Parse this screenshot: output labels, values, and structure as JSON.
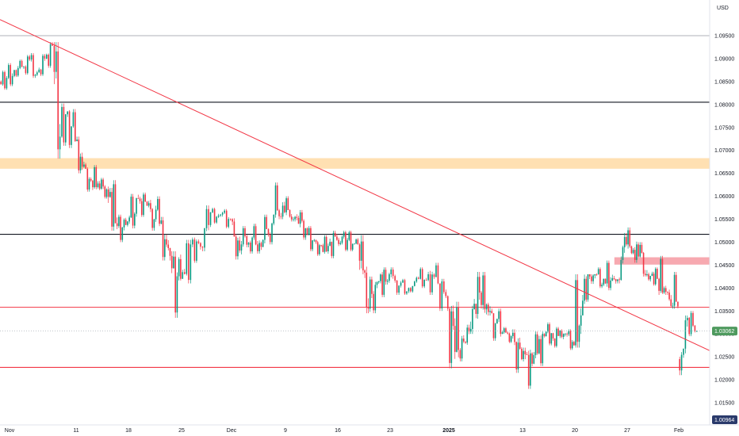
{
  "chart_data": {
    "type": "candlestick",
    "currency_label": "USD",
    "y_ticks": [
      "1.09500",
      "1.09000",
      "1.08500",
      "1.08000",
      "1.07500",
      "1.07000",
      "1.06500",
      "1.06000",
      "1.05500",
      "1.05000",
      "1.04500",
      "1.04000",
      "1.03500",
      "1.03000",
      "1.02500",
      "1.02000",
      "1.01500"
    ],
    "x_ticks": [
      "Nov",
      "11",
      "18",
      "25",
      "Dec",
      "9",
      "16",
      "23",
      "2025",
      "13",
      "20",
      "27",
      "Feb"
    ],
    "ylim": [
      1.00964,
      1.0995
    ],
    "current_price": "1.03062",
    "bottom_price": "1.00964",
    "colors": {
      "up": "#089981",
      "down": "#f23645",
      "line": "#131722",
      "red_line": "#f23645",
      "supply_zone": "#ffe0b2",
      "resistance_zone": "#f7a9b0",
      "current_price": "#4e9a5e",
      "bottom_price": "#2a3a6b"
    },
    "horizontal_lines": [
      {
        "price": 1.095,
        "color": "gray"
      },
      {
        "price": 1.0805,
        "color": "black"
      },
      {
        "price": 1.0517,
        "color": "black"
      },
      {
        "price": 1.0358,
        "color": "red"
      },
      {
        "price": 1.0227,
        "color": "red"
      }
    ],
    "zones": [
      {
        "from": 1.066,
        "to": 1.0683,
        "color": "supply_zone"
      },
      {
        "from": 1.0451,
        "to": 1.0467,
        "color": "resistance_zone"
      }
    ],
    "trendline": {
      "from": {
        "x": "Oct 28",
        "price": 1.0985
      },
      "to": {
        "x": "Feb 3",
        "price": 1.0295
      }
    },
    "candles": [
      {
        "date": "Oct 28",
        "o": 1.085,
        "h": 1.0874,
        "l": 1.0832,
        "c": 1.0858
      },
      {
        "date": "Oct 29",
        "o": 1.0858,
        "h": 1.089,
        "l": 1.084,
        "c": 1.0875
      },
      {
        "date": "Oct 30",
        "o": 1.0875,
        "h": 1.0898,
        "l": 1.086,
        "c": 1.0882
      },
      {
        "date": "Oct 31",
        "o": 1.0882,
        "h": 1.0908,
        "l": 1.0865,
        "c": 1.0898
      },
      {
        "date": "Nov 1",
        "o": 1.0898,
        "h": 1.0912,
        "l": 1.0858,
        "c": 1.087
      },
      {
        "date": "Nov 4",
        "o": 1.087,
        "h": 1.091,
        "l": 1.0862,
        "c": 1.09
      },
      {
        "date": "Nov 5",
        "o": 1.09,
        "h": 1.0936,
        "l": 1.088,
        "c": 1.0928
      },
      {
        "date": "Nov 6",
        "o": 1.0928,
        "h": 1.0936,
        "l": 1.0682,
        "c": 1.073
      },
      {
        "date": "Nov 7",
        "o": 1.073,
        "h": 1.0802,
        "l": 1.071,
        "c": 1.0785
      },
      {
        "date": "Nov 8",
        "o": 1.0785,
        "h": 1.079,
        "l": 1.0705,
        "c": 1.072
      },
      {
        "date": "Nov 11",
        "o": 1.072,
        "h": 1.073,
        "l": 1.065,
        "c": 1.066
      },
      {
        "date": "Nov 12",
        "o": 1.066,
        "h": 1.0668,
        "l": 1.061,
        "c": 1.062
      },
      {
        "date": "Nov 13",
        "o": 1.062,
        "h": 1.064,
        "l": 1.0595,
        "c": 1.0615
      },
      {
        "date": "Nov 14",
        "o": 1.0615,
        "h": 1.0635,
        "l": 1.0525,
        "c": 1.0535
      },
      {
        "date": "Nov 15",
        "o": 1.0535,
        "h": 1.056,
        "l": 1.05,
        "c": 1.0545
      },
      {
        "date": "Nov 18",
        "o": 1.0545,
        "h": 1.0605,
        "l": 1.053,
        "c": 1.0595
      },
      {
        "date": "Nov 19",
        "o": 1.0595,
        "h": 1.0608,
        "l": 1.0555,
        "c": 1.0585
      },
      {
        "date": "Nov 20",
        "o": 1.0585,
        "h": 1.06,
        "l": 1.0525,
        "c": 1.054
      },
      {
        "date": "Nov 21",
        "o": 1.054,
        "h": 1.0555,
        "l": 1.046,
        "c": 1.047
      },
      {
        "date": "Nov 22",
        "o": 1.047,
        "h": 1.048,
        "l": 1.0335,
        "c": 1.042
      },
      {
        "date": "Nov 25",
        "o": 1.042,
        "h": 1.0505,
        "l": 1.041,
        "c": 1.0495
      },
      {
        "date": "Nov 26",
        "o": 1.0495,
        "h": 1.051,
        "l": 1.0455,
        "c": 1.049
      },
      {
        "date": "Nov 27",
        "o": 1.049,
        "h": 1.058,
        "l": 1.048,
        "c": 1.0565
      },
      {
        "date": "Nov 28",
        "o": 1.0565,
        "h": 1.0575,
        "l": 1.054,
        "c": 1.056
      },
      {
        "date": "Nov 29",
        "o": 1.056,
        "h": 1.0572,
        "l": 1.053,
        "c": 1.055
      },
      {
        "date": "Dec 2",
        "o": 1.055,
        "h": 1.0552,
        "l": 1.0462,
        "c": 1.0495
      },
      {
        "date": "Dec 3",
        "o": 1.0495,
        "h": 1.0535,
        "l": 1.0475,
        "c": 1.051
      },
      {
        "date": "Dec 4",
        "o": 1.051,
        "h": 1.054,
        "l": 1.0475,
        "c": 1.0505
      },
      {
        "date": "Dec 5",
        "o": 1.0505,
        "h": 1.056,
        "l": 1.0495,
        "c": 1.056
      },
      {
        "date": "Dec 6",
        "o": 1.056,
        "h": 1.063,
        "l": 1.055,
        "c": 1.0565
      },
      {
        "date": "Dec 9",
        "o": 1.0565,
        "h": 1.06,
        "l": 1.0545,
        "c": 1.0555
      },
      {
        "date": "Dec 10",
        "o": 1.0555,
        "h": 1.057,
        "l": 1.0505,
        "c": 1.053
      },
      {
        "date": "Dec 11",
        "o": 1.053,
        "h": 1.0535,
        "l": 1.048,
        "c": 1.05
      },
      {
        "date": "Dec 12",
        "o": 1.05,
        "h": 1.0515,
        "l": 1.047,
        "c": 1.048
      },
      {
        "date": "Dec 13",
        "o": 1.048,
        "h": 1.0525,
        "l": 1.0465,
        "c": 1.0505
      },
      {
        "date": "Dec 16",
        "o": 1.0505,
        "h": 1.0525,
        "l": 1.048,
        "c": 1.0505
      },
      {
        "date": "Dec 17",
        "o": 1.0505,
        "h": 1.0525,
        "l": 1.048,
        "c": 1.0495
      },
      {
        "date": "Dec 18",
        "o": 1.0495,
        "h": 1.0515,
        "l": 1.0345,
        "c": 1.0355
      },
      {
        "date": "Dec 19",
        "o": 1.0355,
        "h": 1.0425,
        "l": 1.0345,
        "c": 1.0415
      },
      {
        "date": "Dec 20",
        "o": 1.0415,
        "h": 1.0445,
        "l": 1.038,
        "c": 1.043
      },
      {
        "date": "Dec 23",
        "o": 1.043,
        "h": 1.0445,
        "l": 1.0385,
        "c": 1.0405
      },
      {
        "date": "Dec 24",
        "o": 1.0405,
        "h": 1.042,
        "l": 1.0385,
        "c": 1.04
      },
      {
        "date": "Dec 26",
        "o": 1.04,
        "h": 1.0425,
        "l": 1.039,
        "c": 1.042
      },
      {
        "date": "Dec 27",
        "o": 1.042,
        "h": 1.0445,
        "l": 1.04,
        "c": 1.043
      },
      {
        "date": "Dec 30",
        "o": 1.043,
        "h": 1.0455,
        "l": 1.0385,
        "c": 1.041
      },
      {
        "date": "Dec 31",
        "o": 1.041,
        "h": 1.042,
        "l": 1.035,
        "c": 1.0355
      },
      {
        "date": "Jan 2",
        "o": 1.0355,
        "h": 1.037,
        "l": 1.0225,
        "c": 1.0265
      },
      {
        "date": "Jan 3",
        "o": 1.0265,
        "h": 1.032,
        "l": 1.024,
        "c": 1.0305
      },
      {
        "date": "Jan 6",
        "o": 1.0305,
        "h": 1.0435,
        "l": 1.03,
        "c": 1.039
      },
      {
        "date": "Jan 7",
        "o": 1.039,
        "h": 1.0435,
        "l": 1.034,
        "c": 1.035
      },
      {
        "date": "Jan 8",
        "o": 1.035,
        "h": 1.0355,
        "l": 1.0285,
        "c": 1.03
      },
      {
        "date": "Jan 9",
        "o": 1.03,
        "h": 1.0315,
        "l": 1.028,
        "c": 1.0295
      },
      {
        "date": "Jan 10",
        "o": 1.0295,
        "h": 1.031,
        "l": 1.0215,
        "c": 1.0245
      },
      {
        "date": "Jan 13",
        "o": 1.0245,
        "h": 1.027,
        "l": 1.018,
        "c": 1.0235
      },
      {
        "date": "Jan 14",
        "o": 1.0235,
        "h": 1.0305,
        "l": 1.023,
        "c": 1.03
      },
      {
        "date": "Jan 15",
        "o": 1.03,
        "h": 1.0325,
        "l": 1.0275,
        "c": 1.029
      },
      {
        "date": "Jan 16",
        "o": 1.029,
        "h": 1.0315,
        "l": 1.027,
        "c": 1.03
      },
      {
        "date": "Jan 17",
        "o": 1.03,
        "h": 1.031,
        "l": 1.0265,
        "c": 1.0275
      },
      {
        "date": "Jan 20",
        "o": 1.0275,
        "h": 1.043,
        "l": 1.027,
        "c": 1.042
      },
      {
        "date": "Jan 21",
        "o": 1.042,
        "h": 1.043,
        "l": 1.037,
        "c": 1.043
      },
      {
        "date": "Jan 22",
        "o": 1.043,
        "h": 1.0445,
        "l": 1.04,
        "c": 1.041
      },
      {
        "date": "Jan 23",
        "o": 1.041,
        "h": 1.046,
        "l": 1.0395,
        "c": 1.0415
      },
      {
        "date": "Jan 24",
        "o": 1.0415,
        "h": 1.052,
        "l": 1.041,
        "c": 1.0495
      },
      {
        "date": "Jan 27",
        "o": 1.0495,
        "h": 1.0532,
        "l": 1.0455,
        "c": 1.0495
      },
      {
        "date": "Jan 28",
        "o": 1.0495,
        "h": 1.05,
        "l": 1.0425,
        "c": 1.043
      },
      {
        "date": "Jan 29",
        "o": 1.043,
        "h": 1.0445,
        "l": 1.0405,
        "c": 1.042
      },
      {
        "date": "Jan 30",
        "o": 1.042,
        "h": 1.047,
        "l": 1.0385,
        "c": 1.039
      },
      {
        "date": "Jan 31",
        "o": 1.039,
        "h": 1.0435,
        "l": 1.0355,
        "c": 1.036
      },
      {
        "date": "Feb 3",
        "o": 1.0245,
        "h": 1.034,
        "l": 1.021,
        "c": 1.0335
      },
      {
        "date": "Feb 4",
        "o": 1.0335,
        "h": 1.035,
        "l": 1.0295,
        "c": 1.0306
      }
    ]
  }
}
